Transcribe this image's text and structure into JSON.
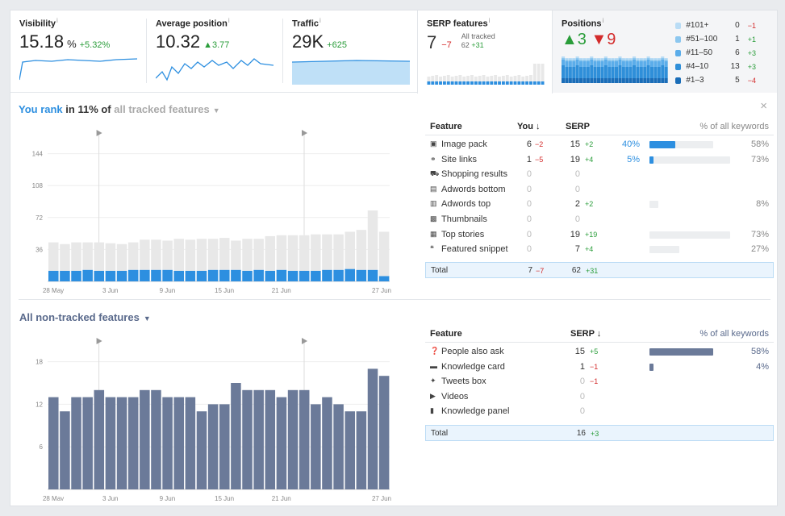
{
  "cards": {
    "visibility": {
      "title": "Visibility",
      "info": "i",
      "value": "15.18",
      "unit": "%",
      "delta": "+5.32%"
    },
    "avgpos": {
      "title": "Average position",
      "info": "i",
      "value": "10.32",
      "delta": "▲3.77"
    },
    "traffic": {
      "title": "Traffic",
      "info": "i",
      "value": "29K",
      "delta": "+625"
    },
    "serp": {
      "title": "SERP features",
      "info": "i",
      "value": "7",
      "delta": "−7",
      "all_tracked": "All tracked",
      "tracked_value": "62",
      "tracked_delta": "+31"
    },
    "positions": {
      "title": "Positions",
      "info": "i",
      "up": "▲3",
      "down": "▼9",
      "legend": [
        {
          "label": "#101+",
          "value": "0",
          "delta": "−1",
          "color": "#b9dcf5",
          "sign": "neg"
        },
        {
          "label": "#51–100",
          "value": "1",
          "delta": "+1",
          "color": "#8cc7ef",
          "sign": "pos"
        },
        {
          "label": "#11–50",
          "value": "6",
          "delta": "+3",
          "color": "#5badea",
          "sign": "pos"
        },
        {
          "label": "#4–10",
          "value": "13",
          "delta": "+3",
          "color": "#2f8fd9",
          "sign": "pos"
        },
        {
          "label": "#1–3",
          "value": "5",
          "delta": "−4",
          "color": "#1a6db8",
          "sign": "neg"
        }
      ]
    }
  },
  "tracked": {
    "title_a": "You rank",
    "title_b": " in 11% of ",
    "title_c": "all tracked features",
    "close": "×",
    "headers": {
      "feature": "Feature",
      "you": "You ↓",
      "serp": "SERP",
      "pct": "% of all keywords"
    },
    "rows": [
      {
        "icon": "image-icon",
        "glyph": "▣",
        "name": "Image pack",
        "you": "6",
        "you_d": "−2",
        "serp": "15",
        "serp_d": "+2",
        "share": "40%",
        "share_v": 40,
        "pct": "58%",
        "pct_v": 58
      },
      {
        "icon": "link-icon",
        "glyph": "⚭",
        "name": "Site links",
        "you": "1",
        "you_d": "−5",
        "serp": "19",
        "serp_d": "+4",
        "share": "5%",
        "share_v": 5,
        "pct": "73%",
        "pct_v": 73
      },
      {
        "icon": "cart-icon",
        "glyph": "⛟",
        "name": "Shopping results",
        "you": "0",
        "you_d": "",
        "serp": "0",
        "serp_d": "",
        "share": "",
        "share_v": 0,
        "pct": "",
        "pct_v": 0
      },
      {
        "icon": "ad-icon",
        "glyph": "▤",
        "name": "Adwords bottom",
        "you": "0",
        "you_d": "",
        "serp": "0",
        "serp_d": "",
        "share": "",
        "share_v": 0,
        "pct": "",
        "pct_v": 0
      },
      {
        "icon": "ad-icon",
        "glyph": "▥",
        "name": "Adwords top",
        "you": "0",
        "you_d": "",
        "serp": "2",
        "serp_d": "+2",
        "share": "",
        "share_v": 0,
        "pct": "8%",
        "pct_v": 8
      },
      {
        "icon": "thumbnail-icon",
        "glyph": "▩",
        "name": "Thumbnails",
        "you": "0",
        "you_d": "",
        "serp": "0",
        "serp_d": "",
        "share": "",
        "share_v": 0,
        "pct": "",
        "pct_v": 0
      },
      {
        "icon": "news-icon",
        "glyph": "▦",
        "name": "Top stories",
        "you": "0",
        "you_d": "",
        "serp": "19",
        "serp_d": "+19",
        "share": "",
        "share_v": 0,
        "pct": "73%",
        "pct_v": 73
      },
      {
        "icon": "quote-icon",
        "glyph": "❝",
        "name": "Featured snippet",
        "you": "0",
        "you_d": "",
        "serp": "7",
        "serp_d": "+4",
        "share": "",
        "share_v": 0,
        "pct": "27%",
        "pct_v": 27
      }
    ],
    "total": {
      "label": "Total",
      "you": "7",
      "you_d": "−7",
      "serp": "62",
      "serp_d": "+31"
    }
  },
  "nontracked": {
    "title": "All non-tracked features",
    "headers": {
      "feature": "Feature",
      "serp": "SERP ↓",
      "pct": "% of all keywords"
    },
    "rows": [
      {
        "icon": "question-icon",
        "glyph": "❓",
        "name": "People also ask",
        "serp": "15",
        "serp_d": "+5",
        "sign": "pos",
        "pct": "58%",
        "pct_v": 58
      },
      {
        "icon": "card-icon",
        "glyph": "▬",
        "name": "Knowledge card",
        "serp": "1",
        "serp_d": "−1",
        "sign": "neg",
        "pct": "4%",
        "pct_v": 4
      },
      {
        "icon": "twitter-icon",
        "glyph": "✦",
        "name": "Tweets box",
        "serp": "0",
        "serp_d": "−1",
        "sign": "neg",
        "pct": "",
        "pct_v": 0
      },
      {
        "icon": "video-icon",
        "glyph": "▶",
        "name": "Videos",
        "serp": "0",
        "serp_d": "",
        "sign": "",
        "pct": "",
        "pct_v": 0
      },
      {
        "icon": "panel-icon",
        "glyph": "▮",
        "name": "Knowledge panel",
        "serp": "0",
        "serp_d": "",
        "sign": "",
        "pct": "",
        "pct_v": 0
      }
    ],
    "total": {
      "label": "Total",
      "serp": "16",
      "serp_d": "+3"
    }
  },
  "chart_data": [
    {
      "type": "bar",
      "x_ticks": [
        "28 May",
        "3 Jun",
        "9 Jun",
        "15 Jun",
        "21 Jun",
        "27 Jun"
      ],
      "y_ticks": [
        36,
        72,
        108,
        144
      ],
      "ylim": [
        0,
        160
      ],
      "series": [
        {
          "values": [
            12,
            12,
            12,
            13,
            12,
            12,
            12,
            13,
            13,
            13,
            13,
            12,
            12,
            12,
            13,
            13,
            13,
            12,
            13,
            12,
            13,
            12,
            12,
            12,
            13,
            13,
            14,
            13,
            13,
            6
          ]
        },
        {
          "values": [
            32,
            30,
            32,
            31,
            32,
            31,
            30,
            31,
            34,
            34,
            33,
            36,
            35,
            36,
            35,
            36,
            33,
            36,
            35,
            39,
            39,
            40,
            40,
            41,
            40,
            40,
            42,
            45,
            67,
            50
          ]
        }
      ],
      "colors": [
        "#2d8fe0",
        "#e8e8e8"
      ]
    },
    {
      "type": "bar",
      "x_ticks": [
        "28 May",
        "3 Jun",
        "9 Jun",
        "15 Jun",
        "21 Jun",
        "27 Jun"
      ],
      "y_ticks": [
        6,
        12,
        18
      ],
      "ylim": [
        0,
        20
      ],
      "series": [
        {
          "values": [
            13,
            11,
            13,
            13,
            14,
            13,
            13,
            13,
            14,
            14,
            13,
            13,
            13,
            11,
            12,
            12,
            15,
            14,
            14,
            14,
            13,
            14,
            14,
            12,
            13,
            12,
            11,
            11,
            17,
            16
          ]
        }
      ],
      "colors": [
        "#6b7a99"
      ]
    }
  ]
}
